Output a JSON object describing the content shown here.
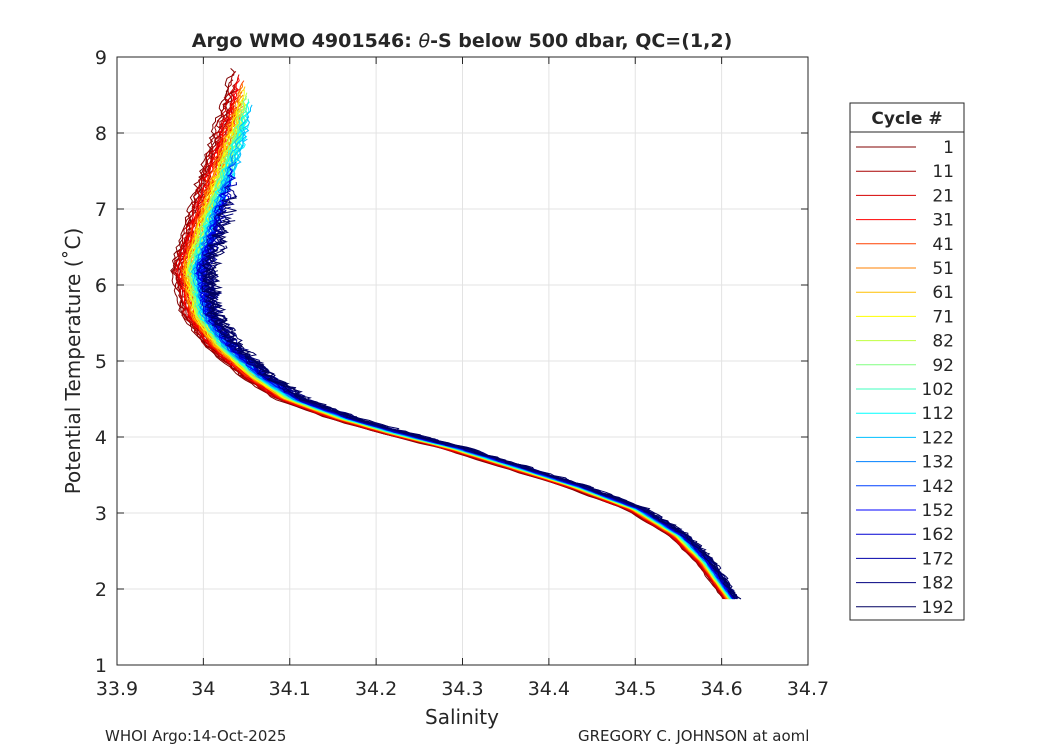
{
  "chart_data": {
    "type": "line",
    "title_prefix": "Argo WMO 4901546: ",
    "title_theta": "θ",
    "title_suffix": "-S below 500 dbar,  QC=(1,2)",
    "xlabel": "Salinity",
    "ylabel": "Potential Temperature (˚C)",
    "xlim": [
      33.9,
      34.7
    ],
    "ylim": [
      1,
      9
    ],
    "xticks": [
      33.9,
      34.0,
      34.1,
      34.2,
      34.3,
      34.4,
      34.5,
      34.6,
      34.7
    ],
    "xtick_labels": [
      "33.9",
      "34",
      "34.1",
      "34.2",
      "34.3",
      "34.4",
      "34.5",
      "34.6",
      "34.7"
    ],
    "yticks": [
      1,
      2,
      3,
      4,
      5,
      6,
      7,
      8,
      9
    ],
    "ytick_labels": [
      "1",
      "2",
      "3",
      "4",
      "5",
      "6",
      "7",
      "8",
      "9"
    ],
    "grid": true,
    "legend_title": "Cycle #",
    "legend_position": "right outside",
    "legend": [
      {
        "cycle": "1",
        "color": "#800000"
      },
      {
        "cycle": "11",
        "color": "#a80000"
      },
      {
        "cycle": "21",
        "color": "#d40000"
      },
      {
        "cycle": "31",
        "color": "#ff0000"
      },
      {
        "cycle": "41",
        "color": "#ff4000"
      },
      {
        "cycle": "51",
        "color": "#ff8000"
      },
      {
        "cycle": "61",
        "color": "#ffbf00"
      },
      {
        "cycle": "71",
        "color": "#ffff00"
      },
      {
        "cycle": "82",
        "color": "#bfff40"
      },
      {
        "cycle": "92",
        "color": "#80ff80"
      },
      {
        "cycle": "102",
        "color": "#40ffbf"
      },
      {
        "cycle": "112",
        "color": "#00ffff"
      },
      {
        "cycle": "122",
        "color": "#00bfff"
      },
      {
        "cycle": "132",
        "color": "#0080ff"
      },
      {
        "cycle": "142",
        "color": "#0040ff"
      },
      {
        "cycle": "152",
        "color": "#0000ff"
      },
      {
        "cycle": "162",
        "color": "#0000d4"
      },
      {
        "cycle": "172",
        "color": "#0000aa"
      },
      {
        "cycle": "182",
        "color": "#000080"
      },
      {
        "cycle": "192",
        "color": "#000060"
      }
    ],
    "base_curve": [
      [
        34.065,
        8.85
      ],
      [
        34.045,
        8.2
      ],
      [
        34.02,
        7.4
      ],
      [
        34.005,
        6.9
      ],
      [
        33.985,
        6.2
      ],
      [
        33.995,
        5.6
      ],
      [
        34.02,
        5.2
      ],
      [
        34.06,
        4.8
      ],
      [
        34.1,
        4.5
      ],
      [
        34.16,
        4.25
      ],
      [
        34.22,
        4.05
      ],
      [
        34.29,
        3.85
      ],
      [
        34.36,
        3.6
      ],
      [
        34.43,
        3.35
      ],
      [
        34.5,
        3.05
      ],
      [
        34.55,
        2.7
      ],
      [
        34.58,
        2.35
      ],
      [
        34.61,
        1.87
      ]
    ],
    "series": [
      {
        "cycle": "1",
        "dS": -0.02,
        "noise": 0.004
      },
      {
        "cycle": "11",
        "dS": -0.017,
        "noise": 0.004
      },
      {
        "cycle": "21",
        "dS": -0.014,
        "noise": 0.004
      },
      {
        "cycle": "31",
        "dS": -0.011,
        "noise": 0.003
      },
      {
        "cycle": "41",
        "dS": -0.008,
        "noise": 0.003
      },
      {
        "cycle": "51",
        "dS": -0.006,
        "noise": 0.003
      },
      {
        "cycle": "61",
        "dS": -0.004,
        "noise": 0.003
      },
      {
        "cycle": "71",
        "dS": -0.002,
        "noise": 0.003
      },
      {
        "cycle": "82",
        "dS": 0.0,
        "noise": 0.003
      },
      {
        "cycle": "92",
        "dS": 0.002,
        "noise": 0.003
      },
      {
        "cycle": "102",
        "dS": 0.004,
        "noise": 0.003
      },
      {
        "cycle": "112",
        "dS": 0.006,
        "noise": 0.004
      },
      {
        "cycle": "122",
        "dS": 0.008,
        "noise": 0.004
      },
      {
        "cycle": "132",
        "dS": 0.01,
        "noise": 0.004
      },
      {
        "cycle": "142",
        "dS": 0.012,
        "noise": 0.005
      },
      {
        "cycle": "152",
        "dS": 0.014,
        "noise": 0.006
      },
      {
        "cycle": "162",
        "dS": 0.016,
        "noise": 0.007
      },
      {
        "cycle": "172",
        "dS": 0.019,
        "noise": 0.009
      },
      {
        "cycle": "182",
        "dS": 0.022,
        "noise": 0.012
      },
      {
        "cycle": "192",
        "dS": 0.025,
        "noise": 0.015
      }
    ]
  },
  "footer": {
    "left": "WHOI Argo:14-Oct-2025",
    "right": "GREGORY C. JOHNSON at aoml"
  }
}
